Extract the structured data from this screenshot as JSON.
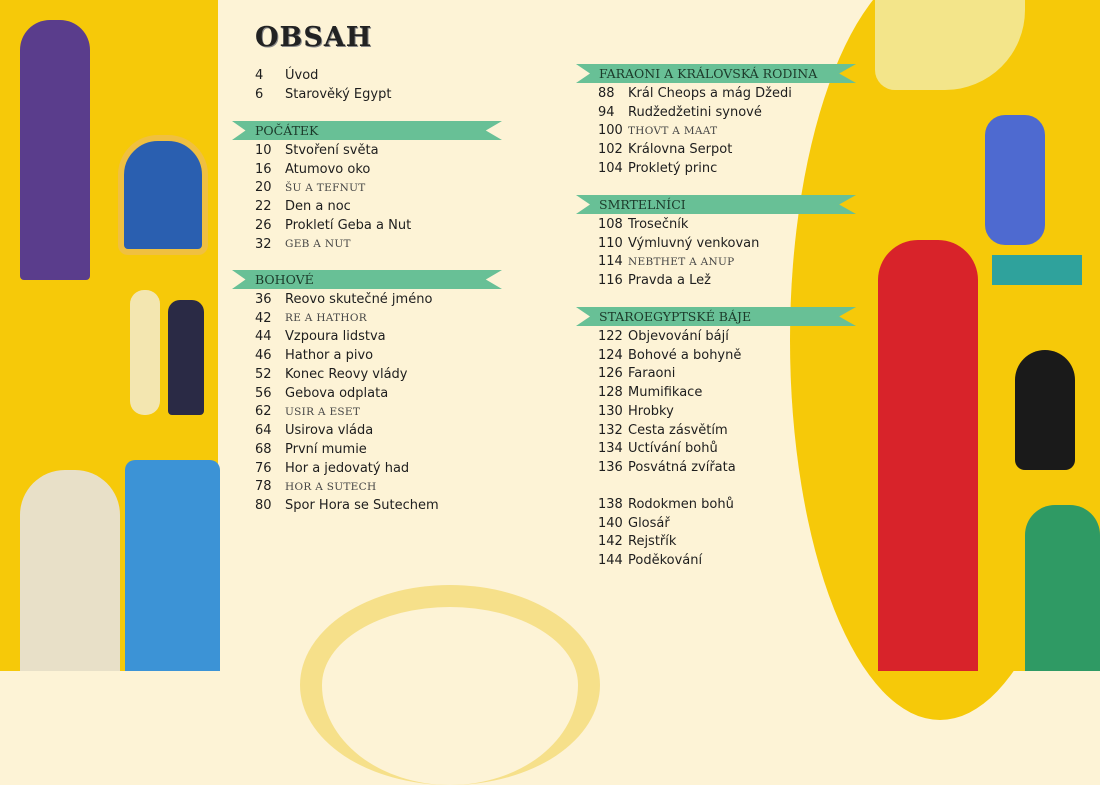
{
  "title": "OBSAH",
  "intro": [
    {
      "page": "4",
      "title": "Úvod"
    },
    {
      "page": "6",
      "title": "Starověký Egypt"
    }
  ],
  "sections": [
    {
      "heading": "POČÁTEK",
      "items": [
        {
          "page": "10",
          "title": "Stvoření světa"
        },
        {
          "page": "16",
          "title": "Atumovo oko"
        },
        {
          "page": "20",
          "title": "ŠU A TEFNUT",
          "caps": true
        },
        {
          "page": "22",
          "title": "Den a noc"
        },
        {
          "page": "26",
          "title": "Prokletí Geba a Nut"
        },
        {
          "page": "32",
          "title": "GEB A NUT",
          "caps": true
        }
      ]
    },
    {
      "heading": "BOHOVÉ",
      "items": [
        {
          "page": "36",
          "title": "Reovo skutečné jméno"
        },
        {
          "page": "42",
          "title": "RE A HATHOR",
          "caps": true
        },
        {
          "page": "44",
          "title": "Vzpoura lidstva"
        },
        {
          "page": "46",
          "title": "Hathor a pivo"
        },
        {
          "page": "52",
          "title": "Konec Reovy vlády"
        },
        {
          "page": "56",
          "title": "Gebova odplata"
        },
        {
          "page": "62",
          "title": "USIR A ESET",
          "caps": true
        },
        {
          "page": "64",
          "title": "Usirova vláda"
        },
        {
          "page": "68",
          "title": "První mumie"
        },
        {
          "page": "76",
          "title": "Hor a jedovatý had"
        },
        {
          "page": "78",
          "title": "HOR A SUTECH",
          "caps": true
        },
        {
          "page": "80",
          "title": "Spor Hora se Sutechem"
        }
      ]
    },
    {
      "heading": "FARAONI A KRÁLOVSKÁ RODINA",
      "items": [
        {
          "page": "88",
          "title": "Král Cheops a mág Džedi"
        },
        {
          "page": "94",
          "title": "Rudžedžetini synové"
        },
        {
          "page": "100",
          "title": "THOVT A MAAT",
          "caps": true
        },
        {
          "page": "102",
          "title": "Královna Serpot"
        },
        {
          "page": "104",
          "title": "Prokletý princ"
        }
      ]
    },
    {
      "heading": "SMRTELNÍCI",
      "items": [
        {
          "page": "108",
          "title": "Trosečník"
        },
        {
          "page": "110",
          "title": "Výmluvný venkovan"
        },
        {
          "page": "114",
          "title": "NEBTHET A ANUP",
          "caps": true
        },
        {
          "page": "116",
          "title": "Pravda a Lež"
        }
      ]
    },
    {
      "heading": "STAROEGYPTSKÉ BÁJE",
      "items": [
        {
          "page": "122",
          "title": "Objevování bájí"
        },
        {
          "page": "124",
          "title": "Bohové a bohyně"
        },
        {
          "page": "126",
          "title": "Faraoni"
        },
        {
          "page": "128",
          "title": "Mumifikace"
        },
        {
          "page": "130",
          "title": "Hrobky"
        },
        {
          "page": "132",
          "title": "Cesta zásvětím"
        },
        {
          "page": "134",
          "title": "Uctívání bohů"
        },
        {
          "page": "136",
          "title": "Posvátná zvířata"
        }
      ]
    }
  ],
  "appendix": [
    {
      "page": "138",
      "title": "Rodokmen bohů"
    },
    {
      "page": "140",
      "title": "Glosář"
    },
    {
      "page": "142",
      "title": "Rejstřík"
    },
    {
      "page": "144",
      "title": "Poděkování"
    }
  ],
  "colors": {
    "banner": "#68c096",
    "side": "#f6c909",
    "paper": "#fdf3d6"
  }
}
